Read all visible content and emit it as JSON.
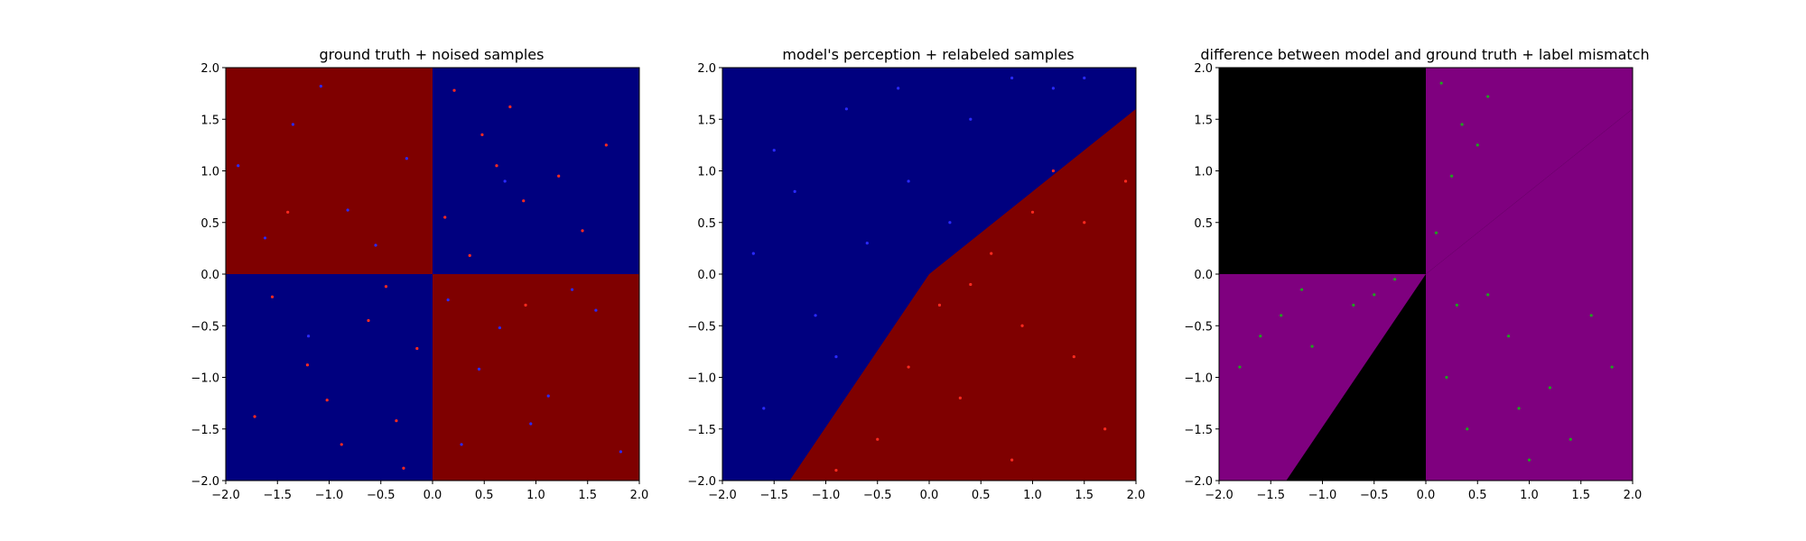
{
  "chart_data": [
    {
      "type": "scatter",
      "title": "ground truth + noised samples",
      "xlabel": "",
      "ylabel": "",
      "xlim": [
        -2.0,
        2.0
      ],
      "ylim": [
        -2.0,
        2.0
      ],
      "xticks": [
        "−2.0",
        "−1.5",
        "−1.0",
        "−0.5",
        "0.0",
        "0.5",
        "1.0",
        "1.5",
        "2.0"
      ],
      "yticks": [
        "−2.0",
        "−1.5",
        "−1.0",
        "−0.5",
        "0.0",
        "0.5",
        "1.0",
        "1.5",
        "2.0"
      ],
      "grid": false,
      "background": "quadrant",
      "colors": {
        "region_a": "#7f0000",
        "region_b": "#00007f",
        "point_red": "#ff2a1f",
        "point_blue": "#2a2aff"
      },
      "series": [
        {
          "color": "#ff2a1f",
          "values": [
            [
              0.21,
              1.78
            ],
            [
              0.48,
              1.35
            ],
            [
              0.75,
              1.62
            ],
            [
              1.22,
              0.95
            ],
            [
              1.45,
              0.42
            ],
            [
              0.36,
              0.18
            ],
            [
              0.88,
              0.71
            ],
            [
              1.68,
              1.25
            ],
            [
              0.12,
              0.55
            ],
            [
              0.62,
              1.05
            ],
            [
              -0.62,
              -0.45
            ],
            [
              -1.21,
              -0.88
            ],
            [
              -0.35,
              -1.42
            ],
            [
              -1.55,
              -0.22
            ],
            [
              -0.88,
              -1.65
            ],
            [
              -0.15,
              -0.72
            ],
            [
              -1.72,
              -1.38
            ],
            [
              -0.45,
              -0.12
            ],
            [
              -1.02,
              -1.22
            ],
            [
              -0.28,
              -1.88
            ],
            [
              -1.4,
              0.6
            ],
            [
              0.9,
              -0.3
            ]
          ]
        },
        {
          "color": "#2a2aff",
          "values": [
            [
              -1.35,
              1.45
            ],
            [
              -0.82,
              0.62
            ],
            [
              -1.62,
              0.35
            ],
            [
              -0.25,
              1.12
            ],
            [
              -1.08,
              1.82
            ],
            [
              -0.55,
              0.28
            ],
            [
              -1.88,
              1.05
            ],
            [
              0.65,
              -0.52
            ],
            [
              1.12,
              -1.18
            ],
            [
              1.58,
              -0.35
            ],
            [
              0.28,
              -1.65
            ],
            [
              1.82,
              -1.72
            ],
            [
              0.45,
              -0.92
            ],
            [
              1.35,
              -0.15
            ],
            [
              0.15,
              -0.25
            ],
            [
              0.95,
              -1.45
            ],
            [
              -1.2,
              -0.6
            ],
            [
              0.7,
              0.9
            ]
          ]
        }
      ]
    },
    {
      "type": "scatter",
      "title": "model's perception + relabeled samples",
      "xlabel": "",
      "ylabel": "",
      "xlim": [
        -2.0,
        2.0
      ],
      "ylim": [
        -2.0,
        2.0
      ],
      "xticks": [
        "−2.0",
        "−1.5",
        "−1.0",
        "−0.5",
        "0.0",
        "0.5",
        "1.0",
        "1.5",
        "2.0"
      ],
      "yticks": [
        "−2.0",
        "−1.5",
        "−1.0",
        "−0.5",
        "0.0",
        "0.5",
        "1.0",
        "1.5",
        "2.0"
      ],
      "grid": false,
      "background": "diagonal",
      "decision_boundary": [
        [
          -1.35,
          -2.0
        ],
        [
          0.0,
          0.0
        ],
        [
          2.0,
          1.6
        ]
      ],
      "colors": {
        "region_a": "#7f0000",
        "region_b": "#00007f",
        "point_red": "#ff2a1f",
        "point_blue": "#2a2aff"
      },
      "series": [
        {
          "color": "#2a2aff",
          "values": [
            [
              -1.5,
              1.2
            ],
            [
              -0.8,
              1.6
            ],
            [
              -0.2,
              0.9
            ],
            [
              0.4,
              1.5
            ],
            [
              1.2,
              1.8
            ],
            [
              -1.7,
              0.2
            ],
            [
              -1.1,
              -0.4
            ],
            [
              -0.6,
              0.3
            ],
            [
              -1.6,
              -1.3
            ],
            [
              0.8,
              1.9
            ],
            [
              -0.3,
              1.8
            ],
            [
              -1.3,
              0.8
            ],
            [
              0.2,
              0.5
            ],
            [
              -0.9,
              -0.8
            ],
            [
              1.5,
              1.9
            ]
          ]
        },
        {
          "color": "#ff2a1f",
          "values": [
            [
              1.5,
              0.5
            ],
            [
              0.9,
              -0.5
            ],
            [
              0.3,
              -1.2
            ],
            [
              1.7,
              -1.5
            ],
            [
              0.6,
              0.2
            ],
            [
              1.2,
              1.0
            ],
            [
              -0.5,
              -1.6
            ],
            [
              0.1,
              -0.3
            ],
            [
              1.9,
              0.9
            ],
            [
              -0.9,
              -1.9
            ],
            [
              0.8,
              -1.8
            ],
            [
              1.4,
              -0.8
            ],
            [
              -0.2,
              -0.9
            ],
            [
              0.4,
              -0.1
            ],
            [
              1.0,
              0.6
            ]
          ]
        }
      ]
    },
    {
      "type": "scatter",
      "title": "difference between model and ground truth + label mismatch",
      "xlabel": "",
      "ylabel": "",
      "xlim": [
        -2.0,
        2.0
      ],
      "ylim": [
        -2.0,
        2.0
      ],
      "xticks": [
        "−2.0",
        "−1.5",
        "−1.0",
        "−0.5",
        "0.0",
        "0.5",
        "1.0",
        "1.5",
        "2.0"
      ],
      "yticks": [
        "−2.0",
        "−1.5",
        "−1.0",
        "−0.5",
        "0.0",
        "0.5",
        "1.0",
        "1.5",
        "2.0"
      ],
      "grid": false,
      "background": "difference",
      "colors": {
        "match": "#000000",
        "mismatch": "#7f007f",
        "point_green": "#1fa31f"
      },
      "series": [
        {
          "color": "#1fa31f",
          "values": [
            [
              0.15,
              1.85
            ],
            [
              0.35,
              1.45
            ],
            [
              0.6,
              1.72
            ],
            [
              0.25,
              0.95
            ],
            [
              0.5,
              1.25
            ],
            [
              0.1,
              0.4
            ],
            [
              0.3,
              -0.3
            ],
            [
              0.8,
              -0.6
            ],
            [
              1.2,
              -1.1
            ],
            [
              1.6,
              -0.4
            ],
            [
              0.4,
              -1.5
            ],
            [
              1.0,
              -1.8
            ],
            [
              0.6,
              -0.2
            ],
            [
              1.4,
              -1.6
            ],
            [
              0.2,
              -1.0
            ],
            [
              -0.3,
              -0.05
            ],
            [
              -0.7,
              -0.3
            ],
            [
              -1.2,
              -0.15
            ],
            [
              -1.6,
              -0.6
            ],
            [
              -1.1,
              -0.7
            ],
            [
              -0.5,
              -0.2
            ],
            [
              -1.8,
              -0.9
            ],
            [
              -1.4,
              -0.4
            ],
            [
              0.9,
              -1.3
            ],
            [
              1.8,
              -0.9
            ]
          ]
        }
      ]
    }
  ]
}
